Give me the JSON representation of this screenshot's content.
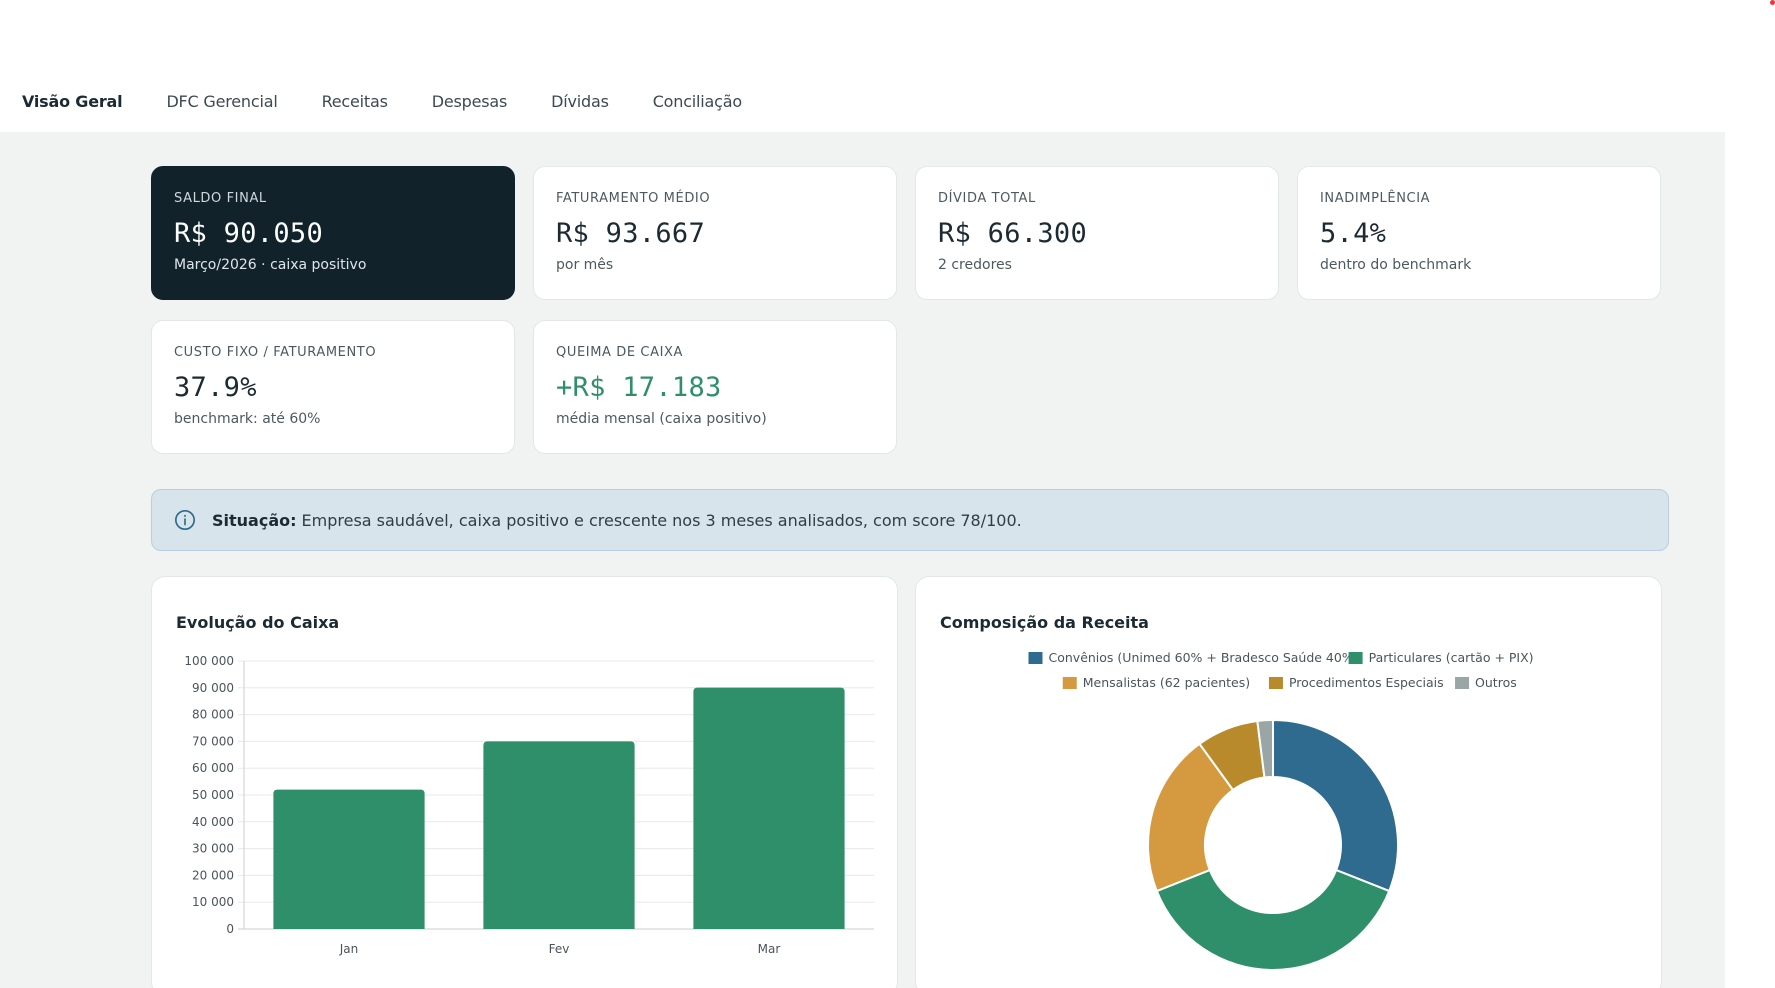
{
  "tabs": [
    {
      "label": "Visão Geral",
      "active": true
    },
    {
      "label": "DFC Gerencial",
      "active": false
    },
    {
      "label": "Receitas",
      "active": false
    },
    {
      "label": "Despesas",
      "active": false
    },
    {
      "label": "Dívidas",
      "active": false
    },
    {
      "label": "Conciliação",
      "active": false
    }
  ],
  "kpis": {
    "saldo": {
      "label": "Saldo Final",
      "value": "R$ 90.050",
      "sub": "Março/2026 · caixa positivo"
    },
    "faturamento": {
      "label": "Faturamento Médio",
      "value": "R$ 93.667",
      "sub": "por mês"
    },
    "divida": {
      "label": "Dívida Total",
      "value": "R$ 66.300",
      "sub": "2 credores"
    },
    "inadimplencia": {
      "label": "Inadimplência",
      "value": "5.4%",
      "sub": "dentro do benchmark"
    },
    "custo_fixo": {
      "label": "Custo Fixo / Faturamento",
      "value": "37.9%",
      "sub": "benchmark: até 60%"
    },
    "queima": {
      "label": "Queima de Caixa",
      "value": "+R$ 17.183",
      "sub": "média mensal (caixa positivo)"
    }
  },
  "alert": {
    "icon": "info-icon",
    "title": "Situação:",
    "text": "Empresa saudável, caixa positivo e crescente nos 3 meses analisados, com score 78/100."
  },
  "colors": {
    "dark_card": "#11222b",
    "positive": "#2e8f6a",
    "tab_underline": "#d9a24a",
    "bar": "#2e8f6a"
  },
  "chart_data": [
    {
      "type": "bar",
      "title": "Evolução do Caixa",
      "categories": [
        "Jan",
        "Fev",
        "Mar"
      ],
      "values": [
        52000,
        70000,
        90050
      ],
      "ylim": [
        0,
        100000
      ],
      "yticks": [
        0,
        10000,
        20000,
        30000,
        40000,
        50000,
        60000,
        70000,
        80000,
        90000,
        100000
      ],
      "ytick_labels": [
        "0",
        "10 000",
        "20 000",
        "30 000",
        "40 000",
        "50 000",
        "60 000",
        "70 000",
        "80 000",
        "90 000",
        "100 000"
      ],
      "grid": true,
      "color": "#2e8f6a"
    },
    {
      "type": "pie",
      "title": "Composição da Receita",
      "donut": true,
      "legend_position": "top",
      "slices": [
        {
          "label": "Convênios (Unimed 60% + Bradesco Saúde 40%)",
          "value": 31,
          "color": "#2e6b8e"
        },
        {
          "label": "Particulares (cartão + PIX)",
          "value": 38,
          "color": "#2e8f6a"
        },
        {
          "label": "Mensalistas (62 pacientes)",
          "value": 21,
          "color": "#d59a3f"
        },
        {
          "label": "Procedimentos Especiais",
          "value": 8,
          "color": "#b98a2c"
        },
        {
          "label": "Outros",
          "value": 2,
          "color": "#9aa5a6"
        }
      ]
    }
  ]
}
